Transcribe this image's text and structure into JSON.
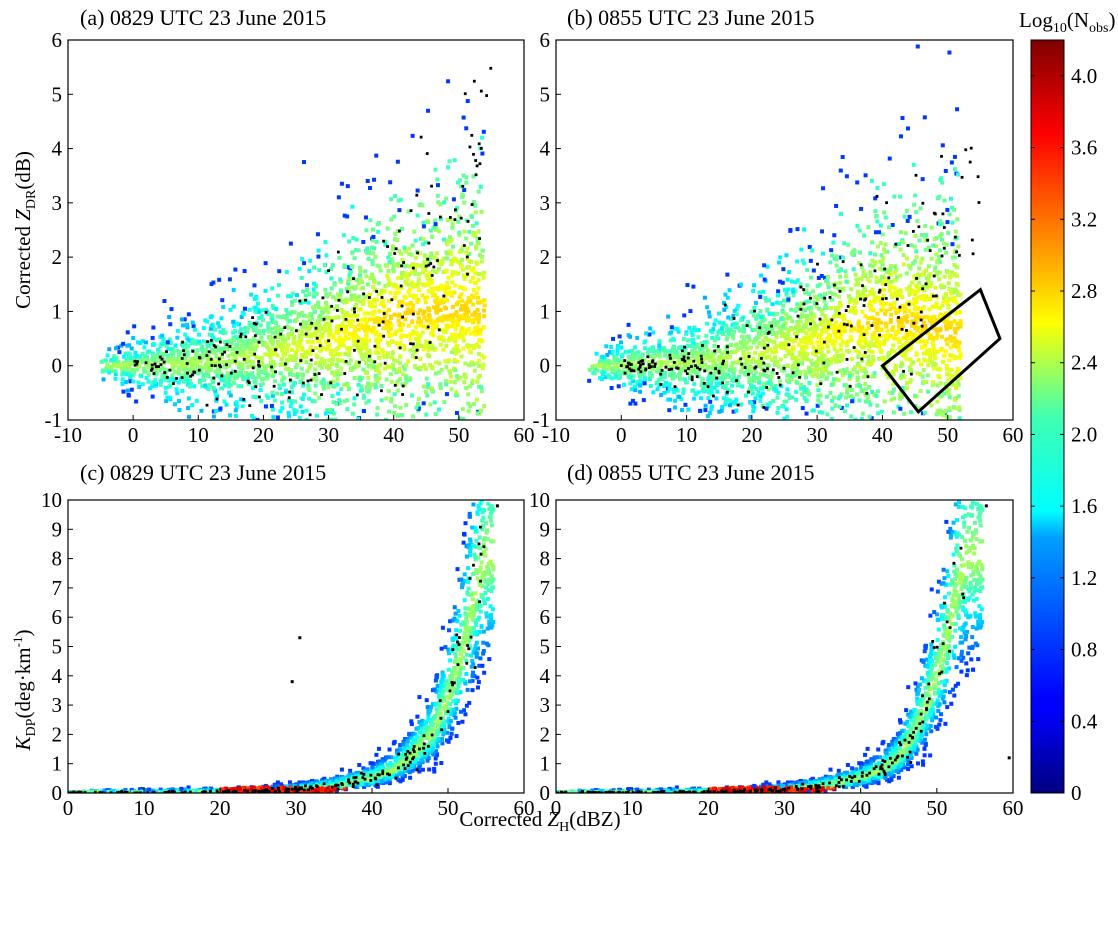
{
  "figure": {
    "colorbar": {
      "title_prefix": "Log",
      "title_sub1": "10",
      "title_mid": "(N",
      "title_sub2": "obs",
      "title_end": ")",
      "ticks": [
        "4.0",
        "3.6",
        "3.2",
        "2.8",
        "2.4",
        "2.0",
        "1.6",
        "1.2",
        "0.8",
        "0.4",
        "0"
      ],
      "range": [
        0,
        4.2
      ]
    },
    "xlabel_prefix": "Corrected ",
    "xlabel_sym": "Z",
    "xlabel_sub": "H",
    "xlabel_unit": "(dBZ)",
    "ylabel_top_prefix": "Corrected ",
    "ylabel_top_sym": "Z",
    "ylabel_top_sub": "DR",
    "ylabel_top_unit": "(dB)",
    "ylabel_bottom_sym": "K",
    "ylabel_bottom_sub": "DP",
    "ylabel_bottom_unit": "(deg·km",
    "ylabel_bottom_exp": "-1",
    "ylabel_bottom_end": ")"
  },
  "chart_data": [
    {
      "id": "a",
      "type": "scatter",
      "title": "(a) 0829 UTC 23 June 2015",
      "xlim": [
        -10,
        60
      ],
      "ylim": [
        -1,
        6
      ],
      "xticks": [
        "-10",
        "0",
        "10",
        "20",
        "30",
        "40",
        "50",
        "60"
      ],
      "yticks": [
        "-1",
        "0",
        "1",
        "2",
        "3",
        "4",
        "5",
        "6"
      ],
      "density_ridge": [
        [
          0,
          0
        ],
        [
          10,
          0.05
        ],
        [
          20,
          0.2
        ],
        [
          30,
          0.45
        ],
        [
          35,
          0.7
        ],
        [
          40,
          0.9
        ],
        [
          45,
          1.0
        ],
        [
          50,
          1.05
        ],
        [
          53,
          1.0
        ]
      ],
      "mean_points": [
        [
          0,
          0
        ],
        [
          5,
          0.01
        ],
        [
          10,
          0.05
        ],
        [
          15,
          0.1
        ],
        [
          20,
          0.18
        ],
        [
          25,
          0.3
        ],
        [
          30,
          0.5
        ],
        [
          35,
          0.8
        ],
        [
          40,
          1.1
        ],
        [
          45,
          1.7
        ],
        [
          48,
          2.3
        ],
        [
          50,
          2.8
        ],
        [
          52,
          3.5
        ],
        [
          55,
          4.2
        ]
      ]
    },
    {
      "id": "b",
      "type": "scatter",
      "title": "(b) 0855 UTC 23 June 2015",
      "xlim": [
        -10,
        60
      ],
      "ylim": [
        -1,
        6
      ],
      "xticks": [
        "-10",
        "0",
        "10",
        "20",
        "30",
        "40",
        "50",
        "60"
      ],
      "yticks": [
        "-1",
        "0",
        "1",
        "2",
        "3",
        "4",
        "5",
        "6"
      ],
      "density_ridge": [
        [
          0,
          0
        ],
        [
          10,
          0.05
        ],
        [
          20,
          0.2
        ],
        [
          30,
          0.45
        ],
        [
          35,
          0.7
        ],
        [
          40,
          0.85
        ],
        [
          45,
          0.8
        ],
        [
          50,
          0.6
        ]
      ],
      "mean_points": [
        [
          0,
          0
        ],
        [
          5,
          0.01
        ],
        [
          10,
          0.05
        ],
        [
          15,
          0.1
        ],
        [
          20,
          0.2
        ],
        [
          25,
          0.35
        ],
        [
          30,
          0.55
        ],
        [
          35,
          0.8
        ],
        [
          40,
          1.0
        ],
        [
          45,
          1.3
        ],
        [
          48,
          1.9
        ],
        [
          50,
          2.5
        ],
        [
          52,
          3.2
        ],
        [
          55,
          4.0
        ]
      ],
      "box": [
        [
          40,
          0.0
        ],
        [
          45.5,
          -0.85
        ],
        [
          58,
          0.5
        ],
        [
          55,
          1.4
        ]
      ]
    },
    {
      "id": "c",
      "type": "scatter",
      "title": "(c) 0829 UTC 23 June 2015",
      "xlim": [
        0,
        60
      ],
      "ylim": [
        0,
        10
      ],
      "xticks": [
        "0",
        "10",
        "20",
        "30",
        "40",
        "50",
        "60"
      ],
      "yticks": [
        "0",
        "1",
        "2",
        "3",
        "4",
        "5",
        "6",
        "7",
        "8",
        "9",
        "10"
      ],
      "mean_points": [
        [
          0,
          0
        ],
        [
          10,
          0.01
        ],
        [
          20,
          0.03
        ],
        [
          25,
          0.06
        ],
        [
          30,
          0.12
        ],
        [
          35,
          0.25
        ],
        [
          40,
          0.5
        ],
        [
          43,
          0.8
        ],
        [
          45,
          1.2
        ],
        [
          48,
          2.0
        ],
        [
          50,
          3.2
        ],
        [
          52,
          4.8
        ],
        [
          53,
          6.0
        ],
        [
          54,
          7.2
        ],
        [
          55,
          8.0
        ]
      ],
      "outliers": [
        [
          56.5,
          9.8
        ],
        [
          30.5,
          5.3
        ],
        [
          29.5,
          3.8
        ]
      ]
    },
    {
      "id": "d",
      "type": "scatter",
      "title": "(d) 0855 UTC 23 June 2015",
      "xlim": [
        0,
        60
      ],
      "ylim": [
        0,
        10
      ],
      "xticks": [
        "0",
        "10",
        "20",
        "30",
        "40",
        "50",
        "60"
      ],
      "yticks": [
        "0",
        "1",
        "2",
        "3",
        "4",
        "5",
        "6",
        "7",
        "8",
        "9",
        "10"
      ],
      "mean_points": [
        [
          0,
          0
        ],
        [
          10,
          0.01
        ],
        [
          20,
          0.03
        ],
        [
          25,
          0.06
        ],
        [
          30,
          0.12
        ],
        [
          35,
          0.25
        ],
        [
          40,
          0.5
        ],
        [
          43,
          0.8
        ],
        [
          45,
          1.2
        ],
        [
          47,
          2.0
        ],
        [
          49,
          3.2
        ],
        [
          51,
          4.8
        ],
        [
          52,
          6.0
        ],
        [
          53,
          7.2
        ],
        [
          54,
          8.0
        ]
      ],
      "outliers": [
        [
          56.5,
          9.8
        ],
        [
          59.5,
          1.2
        ]
      ]
    }
  ]
}
